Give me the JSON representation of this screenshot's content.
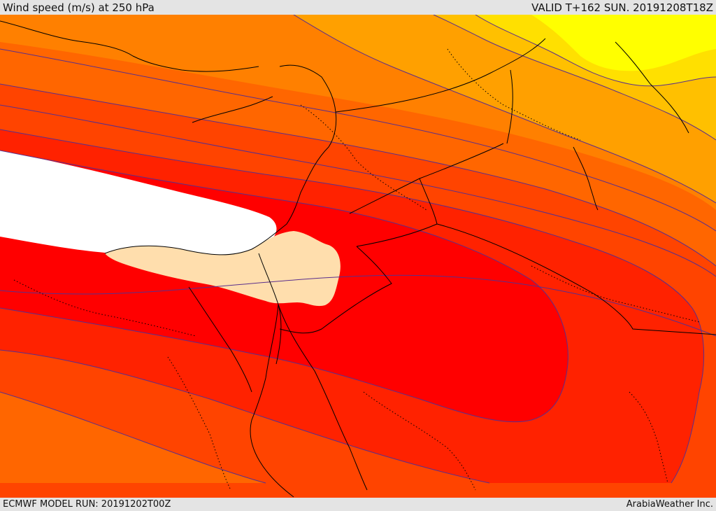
{
  "header": {
    "title": "Wind speed (m/s) at 250 hPa",
    "valid_time": "VALID T+162 SUN. 20191208T18Z"
  },
  "footer": {
    "model_run": "ECMWF MODEL RUN: 20191202T00Z",
    "credit": "ArabiaWeather Inc."
  },
  "colors": {
    "very_strong_core": "#ffffff",
    "strong": "#ff0000",
    "strong_mid": "#ff2200",
    "moderate_high": "#ff4400",
    "moderate": "#ff6600",
    "moderate_low": "#ff8000",
    "light": "#ffa000",
    "lighter": "#ffc000",
    "weak": "#ffe000",
    "weakest": "#ffff00",
    "calm_patch": "#ffdead",
    "contour": "#5a2f8c",
    "border": "#000000"
  }
}
